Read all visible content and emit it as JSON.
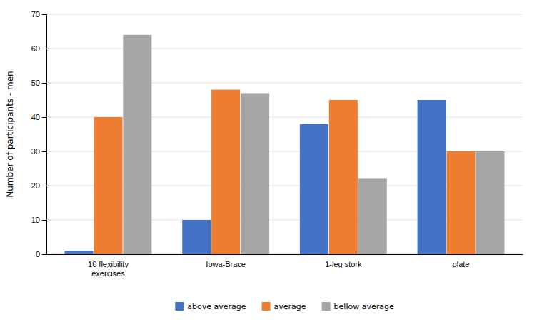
{
  "chart_data": {
    "type": "bar",
    "categories": [
      "10 flexibility\nexercises",
      "Iowa-Brace",
      "1-leg stork",
      "plate"
    ],
    "series": [
      {
        "name": "above average",
        "color": "#4472C4",
        "values": [
          1,
          10,
          38,
          45
        ]
      },
      {
        "name": "average",
        "color": "#ED7D31",
        "values": [
          40,
          48,
          45,
          30
        ]
      },
      {
        "name": "bellow average",
        "color": "#A5A5A5",
        "values": [
          64,
          47,
          22,
          30
        ]
      }
    ],
    "ylabel": "Number of participants - men",
    "ylim": [
      0,
      70
    ],
    "yticks": [
      0,
      10,
      20,
      30,
      40,
      50,
      60,
      70
    ],
    "grid": true,
    "legend": "bottom"
  }
}
